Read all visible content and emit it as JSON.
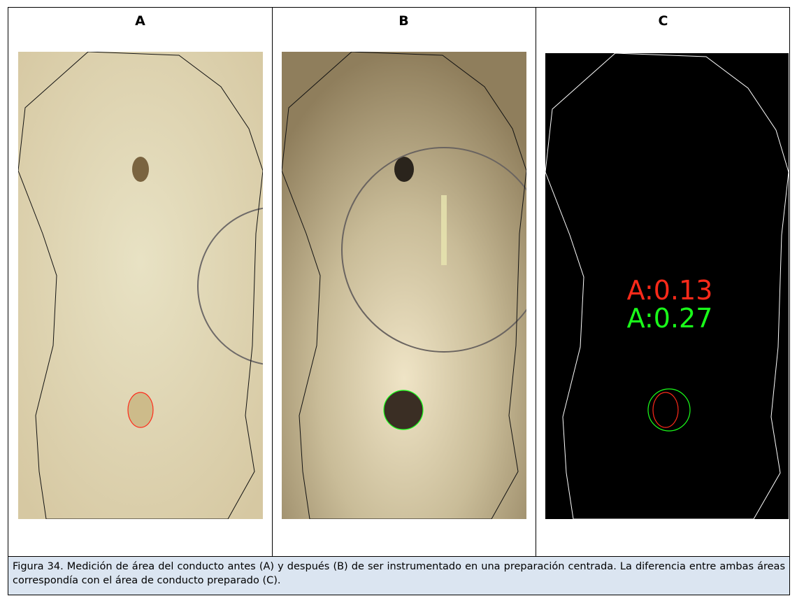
{
  "figure": {
    "panels": [
      {
        "label": "A"
      },
      {
        "label": "B"
      },
      {
        "label": "C"
      }
    ],
    "annotations": [
      {
        "text": "A:0.13",
        "color": "#ff2a1a"
      },
      {
        "text": "A:0.27",
        "color": "#1aff1a"
      }
    ],
    "caption": "Figura 34. Medición de área del conducto antes (A) y después (B) de ser instrumentado en una preparación centrada. La diferencia entre ambas áreas correspondía con el área de conducto preparado (C)."
  }
}
